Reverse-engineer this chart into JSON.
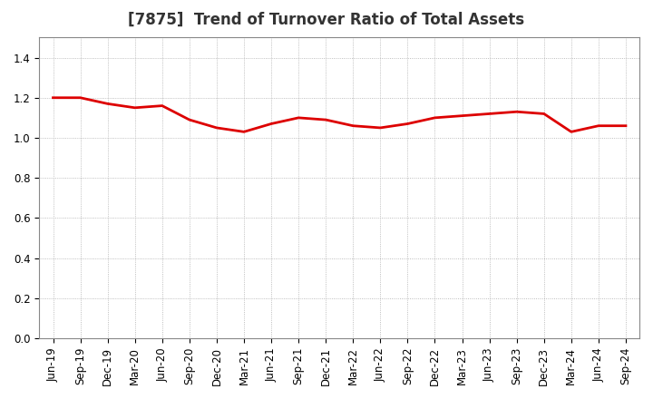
{
  "title": "[7875]  Trend of Turnover Ratio of Total Assets",
  "x_labels": [
    "Jun-19",
    "Sep-19",
    "Dec-19",
    "Mar-20",
    "Jun-20",
    "Sep-20",
    "Dec-20",
    "Mar-21",
    "Jun-21",
    "Sep-21",
    "Dec-21",
    "Mar-22",
    "Jun-22",
    "Sep-22",
    "Dec-22",
    "Mar-23",
    "Jun-23",
    "Sep-23",
    "Dec-23",
    "Mar-24",
    "Jun-24",
    "Sep-24"
  ],
  "values": [
    1.2,
    1.2,
    1.17,
    1.15,
    1.16,
    1.09,
    1.05,
    1.03,
    1.07,
    1.1,
    1.09,
    1.06,
    1.05,
    1.07,
    1.1,
    1.11,
    1.12,
    1.13,
    1.12,
    1.03,
    1.06,
    1.06
  ],
  "line_color": "#dd0000",
  "line_width": 2.0,
  "ylim": [
    0.0,
    1.5
  ],
  "yticks": [
    0.0,
    0.2,
    0.4,
    0.6,
    0.8,
    1.0,
    1.2,
    1.4
  ],
  "bg_color": "#ffffff",
  "plot_bg_color": "#ffffff",
  "grid_color": "#aaaaaa",
  "title_fontsize": 12,
  "tick_fontsize": 8.5
}
